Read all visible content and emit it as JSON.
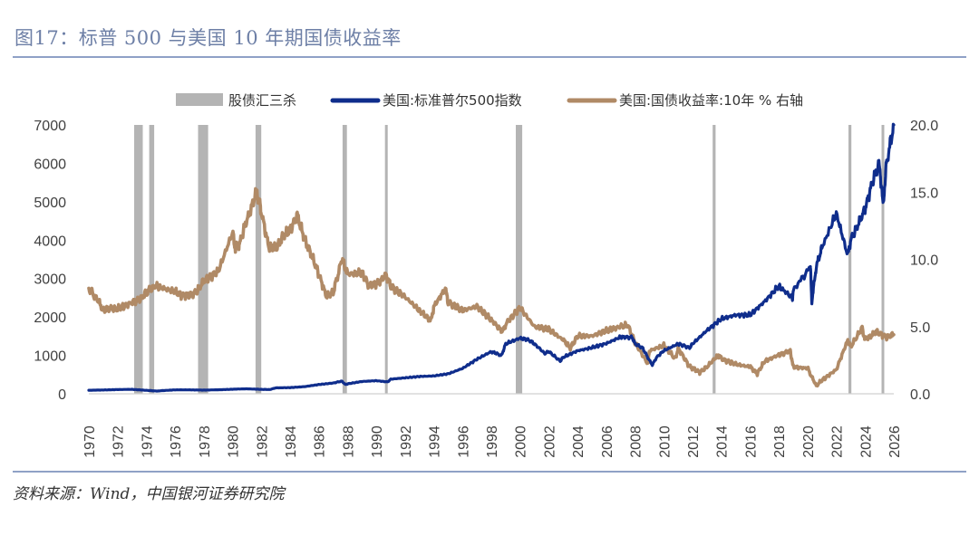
{
  "header": {
    "title": "图17：标普 500 与美国 10 年期国债收益率"
  },
  "footer": {
    "source": "资料来源：Wind，中国银河证券研究院"
  },
  "colors": {
    "title": "#6d7fa6",
    "rule": "#8fa1c6",
    "sp500": "#0f2d8c",
    "yield": "#b08a66",
    "bars": "#b4b4b4",
    "axis": "#d0d0d0"
  },
  "chart_data": {
    "type": "line",
    "title": "",
    "legend": [
      {
        "name": "股债汇三杀",
        "kind": "bar"
      },
      {
        "name": "美国:标准普尔500指数",
        "kind": "line"
      },
      {
        "name": "美国:国债收益率:10年 % 右轴",
        "kind": "line"
      }
    ],
    "x_range": [
      1970,
      2026
    ],
    "x_ticks": [
      "1970",
      "1972",
      "1974",
      "1976",
      "1978",
      "1980",
      "1982",
      "1984",
      "1986",
      "1988",
      "1990",
      "1992",
      "1994",
      "1996",
      "1998",
      "2000",
      "2002",
      "2004",
      "2006",
      "2008",
      "2010",
      "2012",
      "2014",
      "2016",
      "2018",
      "2020",
      "2022",
      "2024",
      "2026"
    ],
    "y_left": {
      "range": [
        0,
        7000
      ],
      "ticks": [
        "0",
        "1000",
        "2000",
        "3000",
        "4000",
        "5000",
        "6000",
        "7000"
      ]
    },
    "y_right": {
      "range": [
        0,
        20
      ],
      "ticks": [
        "0.0",
        "5.0",
        "10.0",
        "15.0",
        "20.0"
      ]
    },
    "triple_kill_periods": [
      [
        1973.15,
        1973.75
      ],
      [
        1974.2,
        1974.55
      ],
      [
        1977.6,
        1978.3
      ],
      [
        1981.6,
        1982.0
      ],
      [
        1987.65,
        1987.95
      ],
      [
        1990.6,
        1990.75
      ],
      [
        1999.7,
        2000.15
      ],
      [
        2013.4,
        2013.6
      ],
      [
        2022.85,
        2023.05
      ],
      [
        2025.15,
        2025.3
      ]
    ],
    "series": [
      {
        "name": "美国:标准普尔500指数",
        "axis": "left",
        "x": [
          1970,
          1971,
          1972,
          1973,
          1974,
          1974.8,
          1975,
          1976,
          1977,
          1978,
          1979,
          1980,
          1981,
          1982,
          1982.6,
          1983,
          1984,
          1985,
          1986,
          1987,
          1987.6,
          1987.85,
          1988,
          1989,
          1990,
          1990.8,
          1991,
          1992,
          1993,
          1994,
          1995,
          1996,
          1997,
          1998,
          1998.7,
          1999,
          2000,
          2000.7,
          2001,
          2001.7,
          2002,
          2002.8,
          2003,
          2004,
          2005,
          2006,
          2007,
          2007.8,
          2008,
          2008.5,
          2009.2,
          2009.5,
          2010,
          2011,
          2011.8,
          2012,
          2013,
          2014,
          2015,
          2016,
          2017,
          2018,
          2018.95,
          2019,
          2020.2,
          2020.3,
          2020.6,
          2021,
          2022,
          2022.8,
          2023,
          2023.5,
          2024,
          2024.5,
          2025,
          2025.25,
          2025.5,
          2026
        ],
        "values": [
          92,
          98,
          110,
          115,
          90,
          70,
          80,
          102,
          102,
          96,
          104,
          118,
          130,
          114,
          110,
          154,
          160,
          186,
          240,
          280,
          330,
          240,
          260,
          320,
          340,
          310,
          380,
          415,
          450,
          465,
          520,
          660,
          900,
          1100,
          990,
          1300,
          1450,
          1380,
          1300,
          1050,
          1100,
          850,
          950,
          1120,
          1200,
          1310,
          1480,
          1470,
          1300,
          1200,
          750,
          950,
          1120,
          1300,
          1200,
          1300,
          1650,
          1950,
          2050,
          2050,
          2400,
          2800,
          2500,
          2700,
          3300,
          2400,
          3300,
          3800,
          4700,
          3600,
          4000,
          4400,
          4800,
          5500,
          6000,
          4900,
          6000,
          7000
        ]
      },
      {
        "name": "美国:国债收益率:10年 % 右轴",
        "axis": "right",
        "x": [
          1970,
          1970.6,
          1971,
          1971.5,
          1972,
          1973,
          1973.5,
          1974,
          1974.6,
          1975,
          1976,
          1976.5,
          1977,
          1977.5,
          1978,
          1979,
          1980,
          1980.2,
          1980.5,
          1981,
          1981.7,
          1982,
          1982.5,
          1983,
          1983.5,
          1984,
          1984.5,
          1985,
          1985.5,
          1986,
          1986.5,
          1987,
          1987.6,
          1988,
          1989,
          1989.5,
          1990,
          1990.7,
          1991,
          1992,
          1993,
          1993.8,
          1994,
          1994.8,
          1995,
          1996,
          1997,
          1998,
          1998.8,
          1999,
          2000,
          2001,
          2002,
          2003,
          2003.5,
          2004,
          2005,
          2006,
          2007,
          2007.5,
          2008,
          2008.9,
          2009,
          2010,
          2010.8,
          2011,
          2011.8,
          2012,
          2012.5,
          2013,
          2013.8,
          2014,
          2015,
          2016,
          2016.5,
          2017,
          2018,
          2018.8,
          2019,
          2020,
          2020.6,
          2021,
          2022,
          2022.8,
          2023,
          2023.8,
          2024,
          2024.7,
          2025,
          2025.5,
          2026
        ],
        "values": [
          7.8,
          7.0,
          6.2,
          6.4,
          6.3,
          6.8,
          7.0,
          7.5,
          8.0,
          7.9,
          7.6,
          7.3,
          7.3,
          7.6,
          8.4,
          9.1,
          12.0,
          10.8,
          11.2,
          13.0,
          15.0,
          13.5,
          11.0,
          10.8,
          11.7,
          12.2,
          13.3,
          11.5,
          10.3,
          8.9,
          7.3,
          7.5,
          10.0,
          8.9,
          9.0,
          8.0,
          8.2,
          8.8,
          8.0,
          7.2,
          6.2,
          5.4,
          6.5,
          7.8,
          6.8,
          6.2,
          6.5,
          5.5,
          4.6,
          5.2,
          6.4,
          5.0,
          4.8,
          4.0,
          3.4,
          4.3,
          4.3,
          4.7,
          5.0,
          5.1,
          3.8,
          2.2,
          3.2,
          3.6,
          2.6,
          3.4,
          2.0,
          1.9,
          1.6,
          2.0,
          2.9,
          2.6,
          2.2,
          2.0,
          1.5,
          2.4,
          2.9,
          3.2,
          2.0,
          1.9,
          0.6,
          1.0,
          1.8,
          4.0,
          3.5,
          4.9,
          4.0,
          4.6,
          4.5,
          4.2,
          4.4
        ]
      }
    ]
  }
}
